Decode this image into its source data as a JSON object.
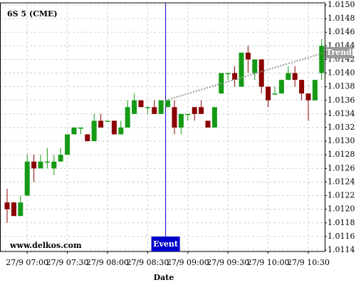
{
  "chart_data": {
    "type": "candlestick",
    "title": "6S 5 (CME)",
    "watermark": "www.delkos.com",
    "x_label": "Date",
    "categories": [
      null,
      null,
      null,
      "27/9 07:00",
      null,
      null,
      null,
      null,
      null,
      "27/9 07:30",
      null,
      null,
      null,
      null,
      null,
      "27/9 08:00",
      null,
      null,
      null,
      null,
      null,
      "27/9 08:30",
      null,
      null,
      null,
      null,
      null,
      "27/9 09:00",
      null,
      null,
      null,
      null,
      null,
      "27/9 09:30",
      null,
      null,
      null,
      null,
      null,
      "27/9 10:00",
      null,
      null,
      null,
      null,
      null,
      "27/9 10:30",
      null,
      null
    ],
    "open": [
      1.0121,
      1.0121,
      1.0119,
      1.0122,
      1.0127,
      1.0126,
      1.0127,
      1.0126,
      1.0127,
      1.0128,
      1.0131,
      1.0132,
      1.0131,
      1.013,
      1.0133,
      1.0133,
      1.0133,
      1.0131,
      1.0132,
      1.0134,
      1.0136,
      1.0135,
      1.0135,
      1.0134,
      1.0135,
      1.0135,
      1.0132,
      1.0134,
      1.0135,
      1.0135,
      1.0133,
      1.0132,
      1.0137,
      1.014,
      1.014,
      1.0138,
      1.0143,
      1.014,
      1.0142,
      1.0138,
      1.0137,
      1.0137,
      1.0139,
      1.014,
      1.0139,
      1.0137,
      1.0136,
      1.014
    ],
    "high": [
      1.0123,
      1.0121,
      1.0122,
      1.0128,
      1.0128,
      1.0128,
      1.0129,
      1.0128,
      1.0129,
      1.0131,
      1.0132,
      1.0132,
      1.0131,
      1.0134,
      1.0134,
      1.0133,
      1.0133,
      1.0133,
      1.0136,
      1.0137,
      1.0136,
      1.0135,
      1.0136,
      1.0136,
      1.0136,
      1.0136,
      1.0134,
      1.0134,
      1.0135,
      1.0136,
      1.0133,
      1.0135,
      1.014,
      1.014,
      1.0141,
      1.0143,
      1.0144,
      1.0142,
      1.0142,
      1.0138,
      1.0138,
      1.0139,
      1.0141,
      1.0141,
      1.0139,
      1.0137,
      1.0139,
      1.0145
    ],
    "low": [
      1.0118,
      1.0119,
      1.0119,
      1.0122,
      1.0124,
      1.0126,
      1.0126,
      1.0125,
      1.0127,
      1.0128,
      1.0131,
      1.0131,
      1.013,
      1.013,
      1.0132,
      1.0133,
      1.0131,
      1.0131,
      1.0132,
      1.0134,
      1.0135,
      1.0134,
      1.0134,
      1.0134,
      1.0135,
      1.0131,
      1.0131,
      1.0133,
      1.0133,
      1.0134,
      1.0132,
      1.0132,
      1.0137,
      1.0139,
      1.0138,
      1.0138,
      1.014,
      1.0139,
      1.0137,
      1.0135,
      1.0137,
      1.0137,
      1.0139,
      1.0138,
      1.0136,
      1.0133,
      1.0136,
      1.0139
    ],
    "close": [
      1.012,
      1.0119,
      1.0121,
      1.0127,
      1.0126,
      1.0127,
      1.0127,
      1.0127,
      1.0128,
      1.0131,
      1.0132,
      1.0132,
      1.013,
      1.0133,
      1.0132,
      1.0133,
      1.0131,
      1.0132,
      1.0135,
      1.0136,
      1.0135,
      1.0135,
      1.0134,
      1.0136,
      1.0136,
      1.0132,
      1.0134,
      1.0134,
      1.0134,
      1.0134,
      1.0132,
      1.0135,
      1.014,
      1.014,
      1.0139,
      1.0143,
      1.0142,
      1.0142,
      1.0138,
      1.0136,
      1.0137,
      1.0139,
      1.014,
      1.0139,
      1.0137,
      1.0136,
      1.0139,
      1.0144
    ],
    "up_color": "#159a15",
    "down_color": "#8b0000",
    "ylim": [
      1.0114,
      1.015
    ],
    "yticks": [
      1.0114,
      1.0116,
      1.0118,
      {
        "value": 1.012,
        "label": "1.0120"
      },
      1.0122,
      1.0124,
      1.0126,
      1.0128,
      {
        "value": 1.013,
        "label": "1.0130"
      },
      1.0132,
      1.0134,
      1.0136,
      1.0138,
      {
        "value": 1.014,
        "label": "1.0140"
      },
      1.0142,
      1.0144,
      1.0146,
      1.0148,
      {
        "value": 1.015,
        "label": "1.0150"
      }
    ],
    "grid": true,
    "event": {
      "label": "Event",
      "color": "#0000cc"
    },
    "trend": {
      "label": "Trend",
      "values": [
        1.0136,
        1.0143
      ],
      "color": "#999999"
    }
  }
}
